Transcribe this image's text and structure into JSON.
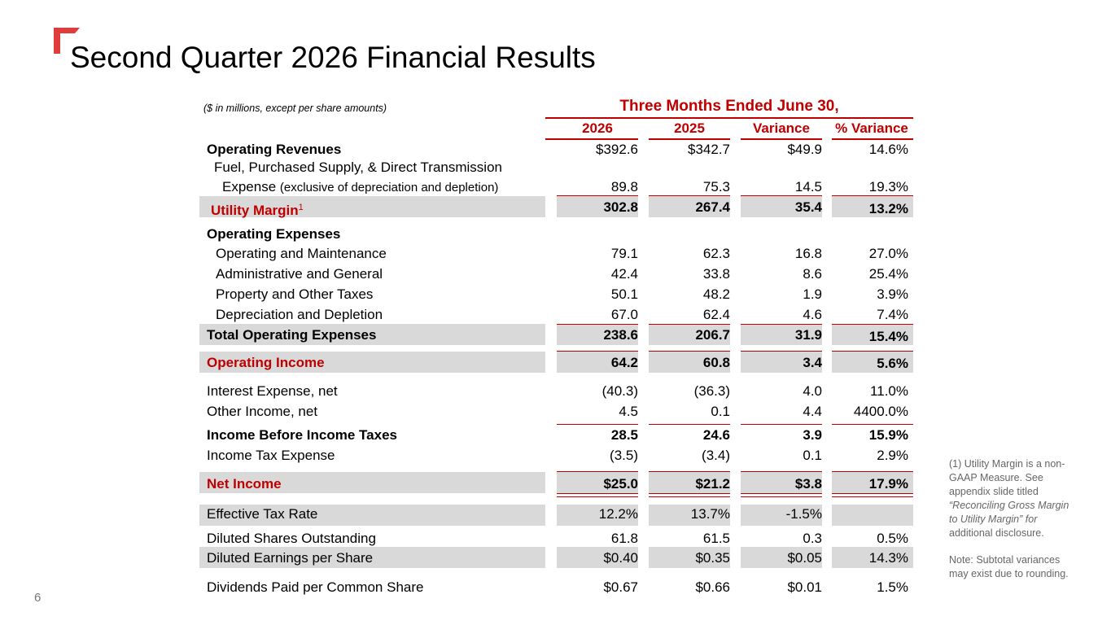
{
  "slide": {
    "title": "Second Quarter 2026 Financial Results",
    "page_number": "6"
  },
  "table": {
    "units_note": "($ in millions, except per share amounts)",
    "period_header": "Three Months Ended June 30,",
    "columns": [
      "2026",
      "2025",
      "Variance",
      "% Variance"
    ],
    "rows": [
      {
        "label": "Operating Revenues",
        "values": [
          "$392.6",
          "$342.7",
          "$49.9",
          "14.6%"
        ]
      },
      {
        "label": "Fuel, Purchased Supply, & Direct Transmission",
        "values": [
          "",
          "",
          "",
          ""
        ]
      },
      {
        "label": "Expense",
        "label_note": "(exclusive of depreciation and depletion)",
        "values": [
          "89.8",
          "75.3",
          "14.5",
          "19.3%"
        ]
      },
      {
        "label": "Utility Margin",
        "label_sup": "1",
        "values": [
          "302.8",
          "267.4",
          "35.4",
          "13.2%"
        ]
      },
      {
        "label": "Operating Expenses",
        "values": [
          "",
          "",
          "",
          ""
        ]
      },
      {
        "label": "Operating and Maintenance",
        "values": [
          "79.1",
          "62.3",
          "16.8",
          "27.0%"
        ]
      },
      {
        "label": "Administrative and General",
        "values": [
          "42.4",
          "33.8",
          "8.6",
          "25.4%"
        ]
      },
      {
        "label": "Property and Other Taxes",
        "values": [
          "50.1",
          "48.2",
          "1.9",
          "3.9%"
        ]
      },
      {
        "label": "Depreciation and Depletion",
        "values": [
          "67.0",
          "62.4",
          "4.6",
          "7.4%"
        ]
      },
      {
        "label": "Total Operating Expenses",
        "values": [
          "238.6",
          "206.7",
          "31.9",
          "15.4%"
        ]
      },
      {
        "label": "Operating Income",
        "values": [
          "64.2",
          "60.8",
          "3.4",
          "5.6%"
        ]
      },
      {
        "label": "Interest Expense, net",
        "values": [
          "(40.3)",
          "(36.3)",
          "4.0",
          "11.0%"
        ]
      },
      {
        "label": "Other Income, net",
        "values": [
          "4.5",
          "0.1",
          "4.4",
          "4400.0%"
        ]
      },
      {
        "label": "Income Before Income Taxes",
        "values": [
          "28.5",
          "24.6",
          "3.9",
          "15.9%"
        ]
      },
      {
        "label": "Income Tax Expense",
        "values": [
          "(3.5)",
          "(3.4)",
          "0.1",
          "2.9%"
        ]
      },
      {
        "label": "Net Income",
        "values": [
          "$25.0",
          "$21.2",
          "$3.8",
          "17.9%"
        ]
      },
      {
        "label": "Effective Tax Rate",
        "values": [
          "12.2%",
          "13.7%",
          "-1.5%",
          ""
        ]
      },
      {
        "label": "Diluted Shares Outstanding",
        "values": [
          "61.8",
          "61.5",
          "0.3",
          "0.5%"
        ]
      },
      {
        "label": "Diluted Earnings per Share",
        "values": [
          "$0.40",
          "$0.35",
          "$0.05",
          "14.3%"
        ]
      },
      {
        "label": "Dividends Paid per Common Share",
        "values": [
          "$0.67",
          "$0.66",
          "$0.01",
          "1.5%"
        ]
      }
    ]
  },
  "footnotes": {
    "utility_margin_prefix": "(1) Utility Margin is a non-GAAP Measure. See appendix slide titled",
    "utility_margin_title": "“Reconciling Gross Margin to Utility Margin” for",
    "utility_margin_suffix": "additional disclosure.",
    "rounding_note": "Note: Subtotal variances may exist due to rounding."
  },
  "colors": {
    "accent": "#c00000",
    "band": "#d9d9d9",
    "logo": "#e03c3c"
  }
}
